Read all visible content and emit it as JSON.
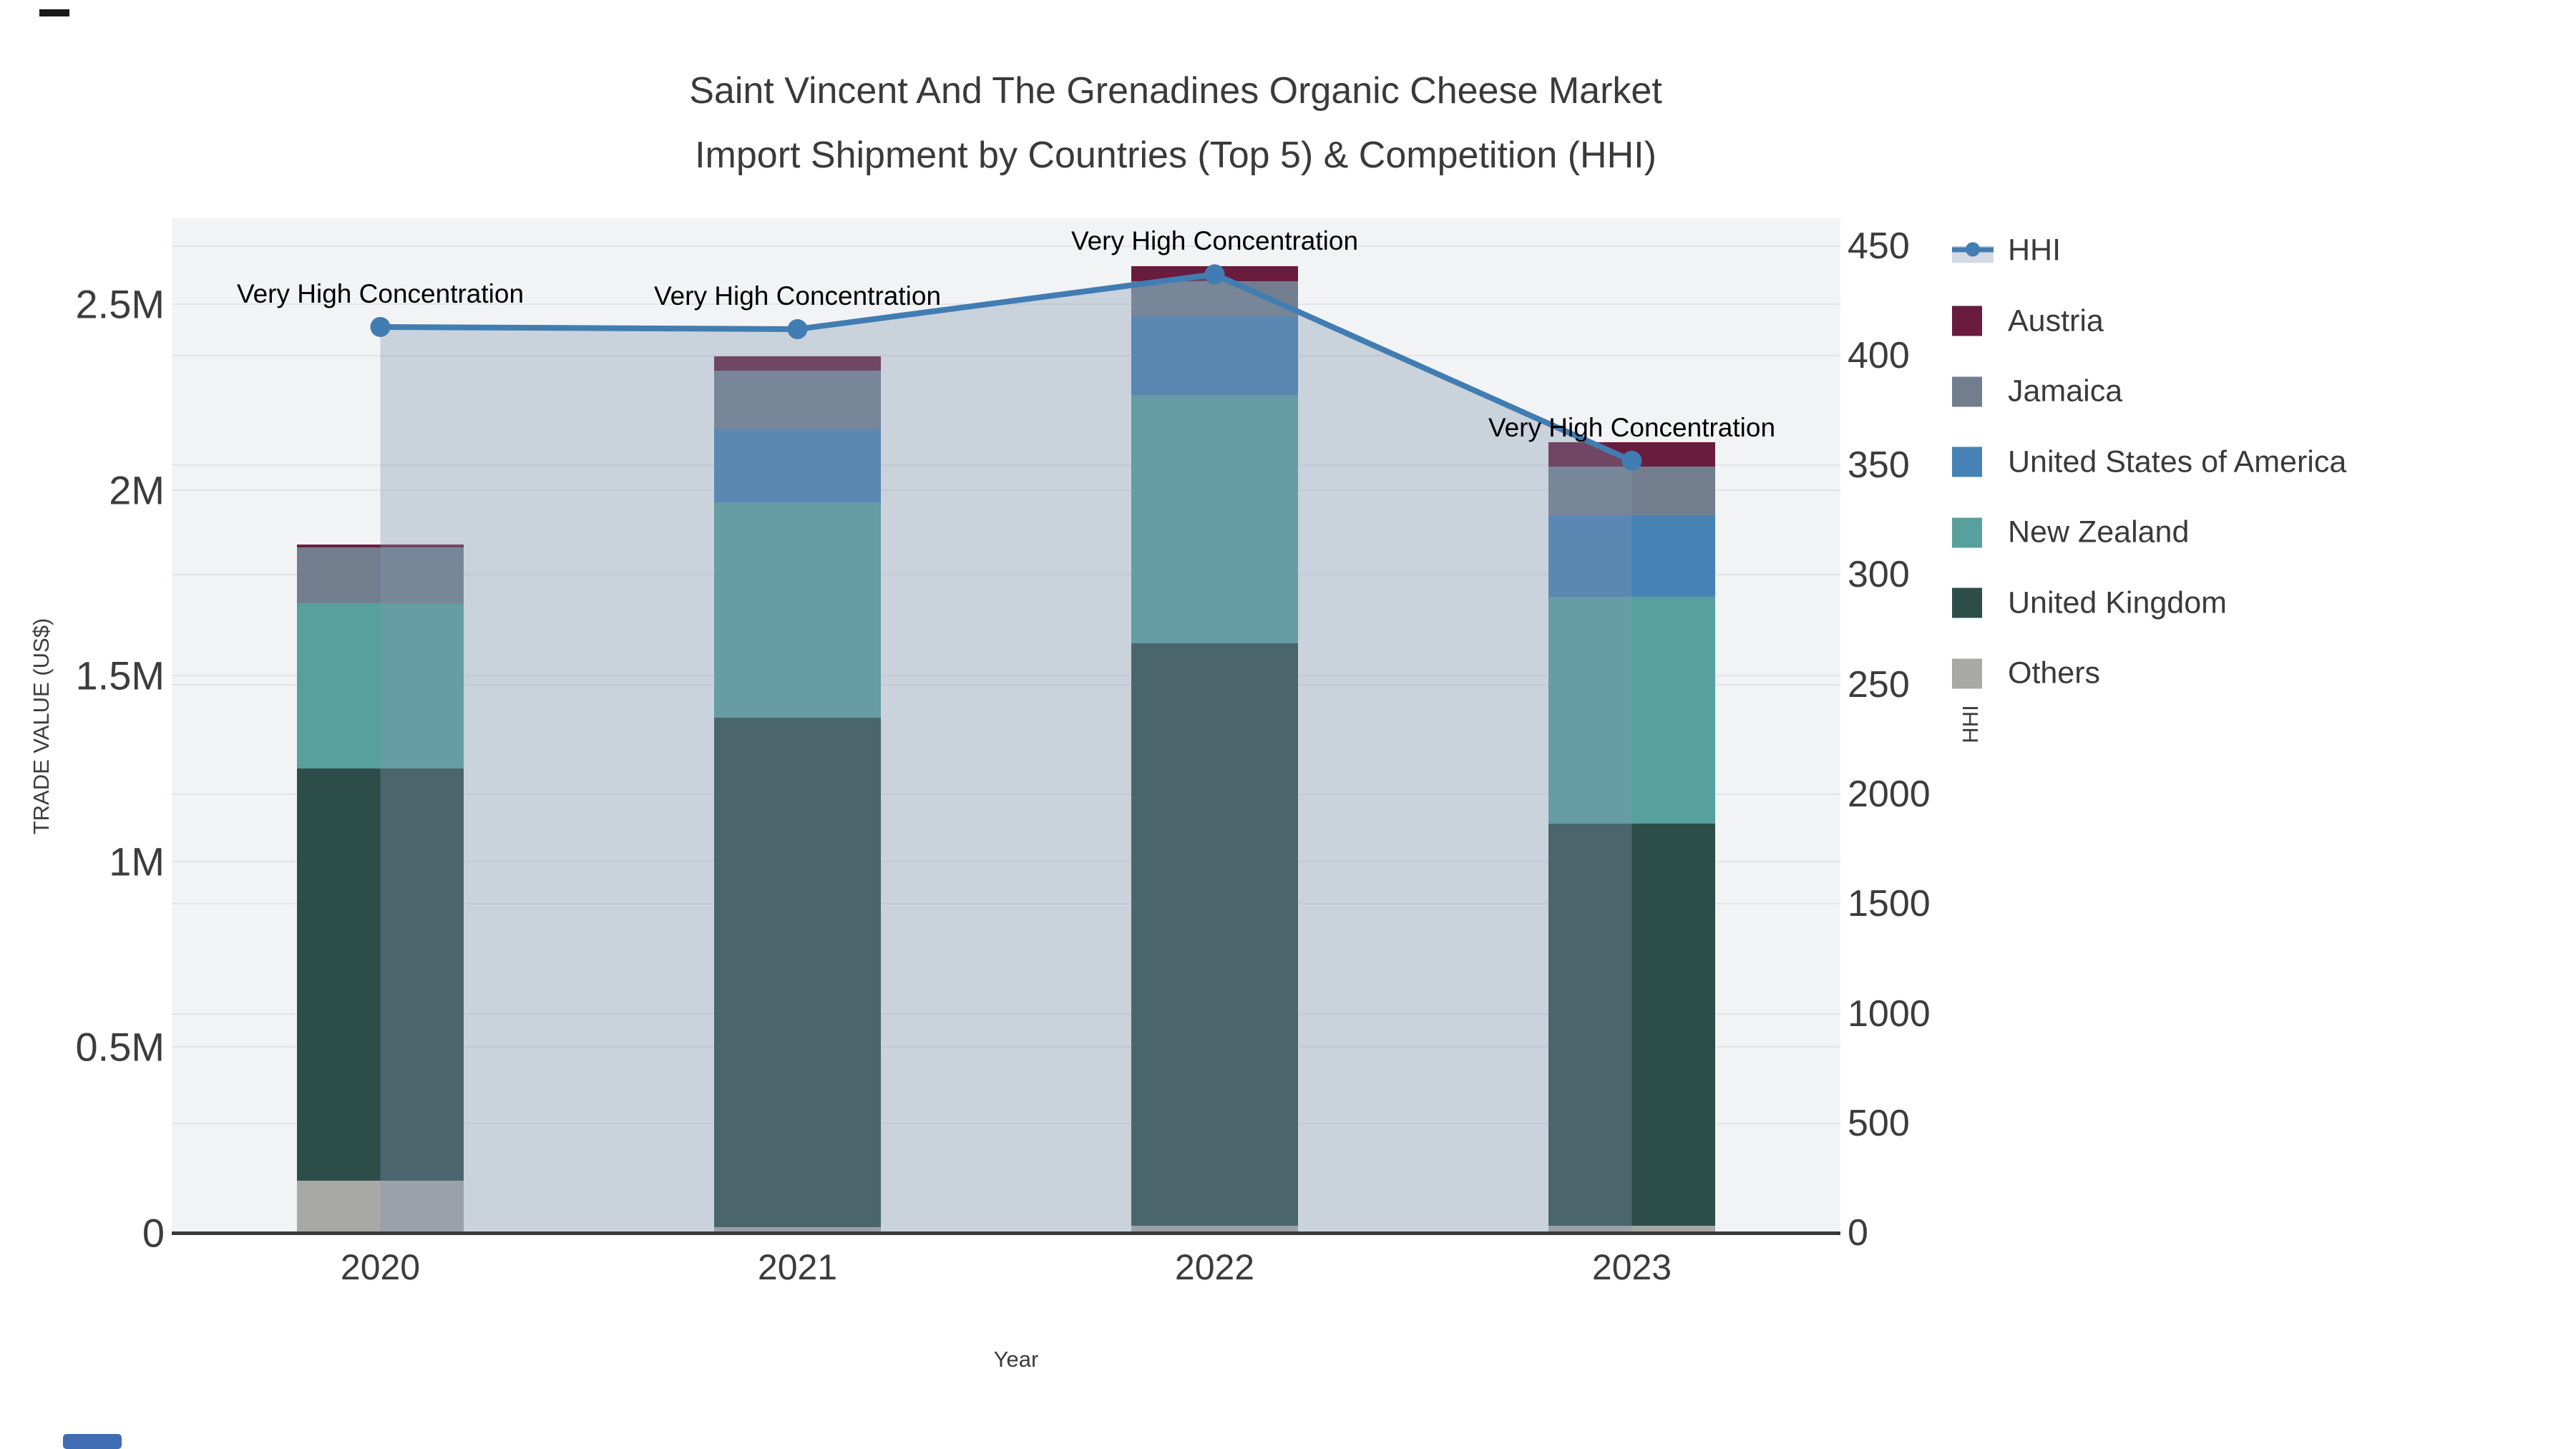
{
  "title": {
    "line1": "Saint Vincent And The Grenadines Organic Cheese Market",
    "line2": "Import Shipment by Countries (Top 5) & Competition (HHI)"
  },
  "colors": {
    "austria": "#691C3E",
    "jamaica": "#727E8D",
    "usa": "#4682B4",
    "new_zealand": "#58A09D",
    "united_kingdom": "#2D4D49",
    "others": "#A8A8A6",
    "hhi_line": "#417DB2",
    "hhi_area": "rgba(130,148,175,0.35)",
    "plot_bg": "#f2f3f4",
    "grid": "#e2e4e8",
    "axis_line": "#3a3a3a",
    "annotation_text": "#000000"
  },
  "chart_data": {
    "type": "bar",
    "subtype": "stacked-bars-with-line",
    "categories": [
      "2020",
      "2021",
      "2022",
      "2023"
    ],
    "xlabel": "Year",
    "ylabel": "TRADE VALUE (US$)",
    "y2label": "HHI",
    "series": [
      {
        "name": "Others",
        "color_key": "others",
        "values": [
          140000,
          15000,
          19000,
          19000
        ]
      },
      {
        "name": "United Kingdom",
        "color_key": "united_kingdom",
        "values": [
          1110000,
          1371000,
          1568000,
          1082000
        ]
      },
      {
        "name": "New Zealand",
        "color_key": "new_zealand",
        "values": [
          445000,
          580000,
          668000,
          612000
        ]
      },
      {
        "name": "United States of America",
        "color_key": "usa",
        "values": [
          0,
          197000,
          212000,
          218000
        ]
      },
      {
        "name": "Jamaica",
        "color_key": "jamaica",
        "values": [
          150000,
          158000,
          95000,
          131000
        ]
      },
      {
        "name": "Austria",
        "color_key": "austria",
        "values": [
          8000,
          38000,
          40000,
          67000
        ]
      }
    ],
    "line_series": {
      "name": "HHI",
      "color_key": "hhi_line",
      "area_color_key": "hhi_area",
      "values": [
        413,
        412,
        437,
        352
      ]
    },
    "annotations": [
      {
        "category": "2020",
        "text": "Very High Concentration"
      },
      {
        "category": "2021",
        "text": "Very High Concentration"
      },
      {
        "category": "2022",
        "text": "Very High Concentration"
      },
      {
        "category": "2023",
        "text": "Very High Concentration"
      }
    ],
    "left_axis": {
      "title": "TRADE VALUE (US$)",
      "ticks": [
        {
          "label": "0",
          "value": 0
        },
        {
          "label": "0.5M",
          "value": 500000
        },
        {
          "label": "1M",
          "value": 1000000
        },
        {
          "label": "1.5M",
          "value": 1500000
        },
        {
          "label": "2M",
          "value": 2000000
        },
        {
          "label": "2.5M",
          "value": 2500000
        }
      ],
      "ylim": [
        0,
        2730000
      ],
      "grid": true
    },
    "right_axis": {
      "title": "HHI",
      "tick_labels_top_to_bottom": [
        "450",
        "400",
        "350",
        "300",
        "250",
        "2000",
        "1500",
        "1000",
        "500",
        "0"
      ],
      "grid": true
    },
    "legend": [
      {
        "label": "HHI",
        "type": "line",
        "color_key": "hhi_line"
      },
      {
        "label": "Austria",
        "type": "box",
        "color_key": "austria"
      },
      {
        "label": "Jamaica",
        "type": "box",
        "color_key": "jamaica"
      },
      {
        "label": "United States of America",
        "type": "box",
        "color_key": "usa"
      },
      {
        "label": "New Zealand",
        "type": "box",
        "color_key": "new_zealand"
      },
      {
        "label": "United Kingdom",
        "type": "box",
        "color_key": "united_kingdom"
      },
      {
        "label": "Others",
        "type": "box",
        "color_key": "others"
      }
    ],
    "legend_position": "right"
  }
}
